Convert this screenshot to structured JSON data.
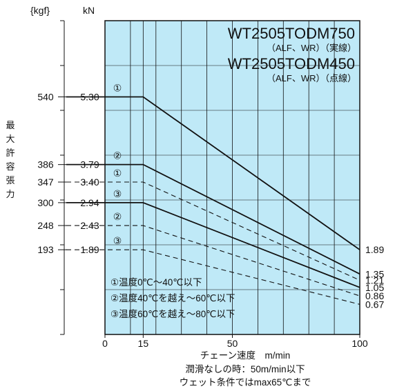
{
  "chart_data": {
    "type": "line",
    "x_unit_label": "チェーン速度　m/min",
    "xlim": [
      0,
      100
    ],
    "x_ticks": [
      "0",
      "15",
      "50",
      "100"
    ],
    "ylim": [
      0,
      7.0
    ],
    "y_axis_title": [
      "最",
      "大",
      "許",
      "容",
      "張",
      "力"
    ],
    "unit_kgf": "{kgf}",
    "unit_kn": "kN",
    "y_ticks": [
      {
        "kn": 5.3,
        "kn_label": "5.30",
        "kgf_label": "540"
      },
      {
        "kn": 3.79,
        "kn_label": "3.79",
        "kgf_label": "386"
      },
      {
        "kn": 3.4,
        "kn_label": "3.40",
        "kgf_label": "347"
      },
      {
        "kn": 2.94,
        "kn_label": "2.94",
        "kgf_label": "300"
      },
      {
        "kn": 2.43,
        "kn_label": "2.43",
        "kgf_label": "248"
      },
      {
        "kn": 1.89,
        "kn_label": "1.89",
        "kgf_label": "193"
      }
    ],
    "legend_titles": [
      {
        "name": "WT2505TODM750",
        "sub": "（ALF、WR）（実線）"
      },
      {
        "name": "WT2505TODM450",
        "sub": "（ALF、WR）（点線）"
      }
    ],
    "series": [
      {
        "model": "WT2505TODM750",
        "condition": "①",
        "style": "solid",
        "x": [
          0,
          15,
          100
        ],
        "y": [
          5.3,
          5.3,
          1.89
        ],
        "end_label": "1.89"
      },
      {
        "model": "WT2505TODM750",
        "condition": "②",
        "style": "solid",
        "x": [
          0,
          15,
          100
        ],
        "y": [
          3.79,
          3.79,
          1.35
        ],
        "end_label": "1.35"
      },
      {
        "model": "WT2505TODM750",
        "condition": "③",
        "style": "solid",
        "x": [
          0,
          15,
          100
        ],
        "y": [
          2.94,
          2.94,
          1.05
        ],
        "end_label": "1.05"
      },
      {
        "model": "WT2505TODM450",
        "condition": "①",
        "style": "dashed",
        "x": [
          0,
          15,
          100
        ],
        "y": [
          3.4,
          3.4,
          1.21
        ],
        "end_label": "1.21"
      },
      {
        "model": "WT2505TODM450",
        "condition": "②",
        "style": "dashed",
        "x": [
          0,
          15,
          100
        ],
        "y": [
          2.43,
          2.43,
          0.86
        ],
        "end_label": "0.86"
      },
      {
        "model": "WT2505TODM450",
        "condition": "③",
        "style": "dashed",
        "x": [
          0,
          15,
          100
        ],
        "y": [
          1.89,
          1.89,
          0.67
        ],
        "end_label": "0.67"
      }
    ],
    "conditions": [
      "①温度0℃～40℃以下",
      "②温度40℃を越え～60℃以下",
      "③温度60℃を越え～80℃以下"
    ],
    "notes": [
      "潤滑なしの時：50m/min以下",
      "ウェット条件ではmax65℃まで"
    ],
    "grid": true,
    "colors": {
      "plot_background": "#bfe9f7",
      "line": "#111111"
    }
  }
}
